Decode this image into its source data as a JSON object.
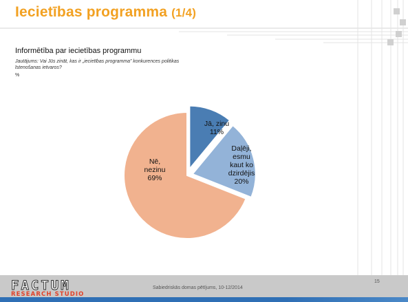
{
  "slide": {
    "title": "Iecietības programma",
    "title_suffix": "(1/4)",
    "subtitle": "Informētība par iecietības programmu",
    "question": "Jautājums: Vai Jūs zināt, kas ir „iecietības programma” konkurences politikas īstenošanas ietvaros?",
    "unit": "%"
  },
  "footer": {
    "logo_top": "FACTUM",
    "logo_bottom": "RESEARCH STUDIO",
    "study": "Sabiedriskās domas pētījums, 10-12/2014",
    "page": "15"
  },
  "chart_data": {
    "type": "pie",
    "title": "",
    "slices": [
      {
        "label": "Jā, zinu",
        "value": 11,
        "color": "#4a7db3"
      },
      {
        "label": "Daļēji, esmu kaut ko dzirdējis",
        "value": 20,
        "color": "#93b3d8"
      },
      {
        "label": "Nē, nezinu",
        "value": 69,
        "color": "#f1b28f"
      }
    ],
    "labels": [
      {
        "lines": [
          "Jā, zinu",
          "11%"
        ]
      },
      {
        "lines": [
          "Daļēji,",
          "esmu",
          "kaut ko",
          "dzirdējis",
          "20%"
        ]
      },
      {
        "lines": [
          "Nē,",
          "nezinu",
          "69%"
        ]
      }
    ],
    "legend": "none"
  },
  "colors": {
    "title": "#f2a122",
    "footer_bar": "#c9c9c9",
    "footer_accent": "#2f6fb5",
    "logo_red": "#e0432b"
  }
}
